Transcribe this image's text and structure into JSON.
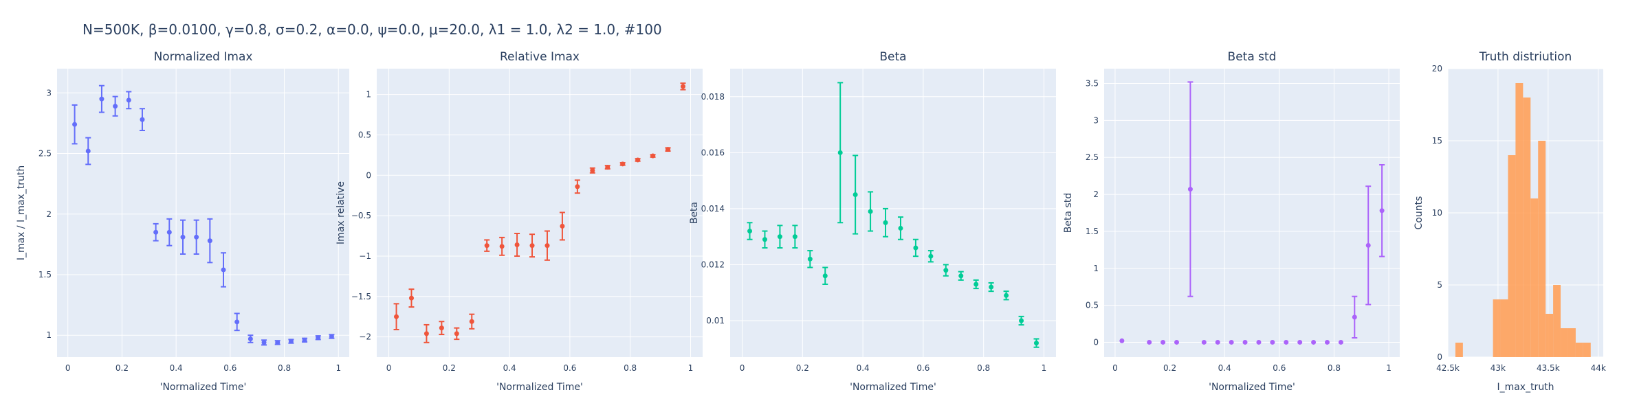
{
  "figure": {
    "title": "N=500K, β=0.0100, γ=0.8, σ=0.2,  α=0.0, ψ=0.0, μ=20.0, λ1 = 1.0, λ2 = 1.0, #100"
  },
  "colors": {
    "plot_bg": "#e5ecf6",
    "grid": "#ffffff",
    "text": "#2a3f5f",
    "imax": "#636efa",
    "relative": "#ef553b",
    "beta": "#00cc96",
    "beta_std": "#ab63fa",
    "hist": "#ffa15a"
  },
  "chart_data": [
    {
      "type": "scatter",
      "title": "Normalized Imax",
      "xlabel": "'Normalized Time'",
      "ylabel": "I_max / I_max_truth",
      "xlim": [
        -0.04,
        1.04
      ],
      "ylim": [
        0.82,
        3.2
      ],
      "xticks": [
        0,
        0.2,
        0.4,
        0.6,
        0.8,
        1
      ],
      "xticklabels": [
        "0",
        "0.2",
        "0.4",
        "0.6",
        "0.8",
        "1"
      ],
      "yticks": [
        1,
        1.5,
        2,
        2.5,
        3
      ],
      "yticklabels": [
        "1",
        "1.5",
        "2",
        "2.5",
        "3"
      ],
      "color_key": "imax",
      "x": [
        0.025,
        0.075,
        0.125,
        0.175,
        0.225,
        0.275,
        0.325,
        0.375,
        0.425,
        0.475,
        0.525,
        0.575,
        0.625,
        0.675,
        0.725,
        0.775,
        0.825,
        0.875,
        0.925,
        0.975
      ],
      "y": [
        2.74,
        2.52,
        2.95,
        2.89,
        2.94,
        2.78,
        1.85,
        1.85,
        1.81,
        1.81,
        1.78,
        1.54,
        1.11,
        0.97,
        0.94,
        0.94,
        0.95,
        0.96,
        0.98,
        0.99
      ],
      "err": [
        0.16,
        0.11,
        0.11,
        0.08,
        0.07,
        0.09,
        0.07,
        0.11,
        0.14,
        0.14,
        0.18,
        0.14,
        0.07,
        0.03,
        0.02,
        0.015,
        0.015,
        0.015,
        0.015,
        0.015
      ]
    },
    {
      "type": "scatter",
      "title": "Relative Imax",
      "xlabel": "'Normalized Time'",
      "ylabel": "Imax relative",
      "xlim": [
        -0.04,
        1.04
      ],
      "ylim": [
        -2.25,
        1.32
      ],
      "xticks": [
        0,
        0.2,
        0.4,
        0.6,
        0.8,
        1
      ],
      "xticklabels": [
        "0",
        "0.2",
        "0.4",
        "0.6",
        "0.8",
        "1"
      ],
      "yticks": [
        -2,
        -1.5,
        -1,
        -0.5,
        0,
        0.5,
        1
      ],
      "yticklabels": [
        "−2",
        "−1.5",
        "−1",
        "−0.5",
        "0",
        "0.5",
        "1"
      ],
      "color_key": "relative",
      "x": [
        0.025,
        0.075,
        0.125,
        0.175,
        0.225,
        0.275,
        0.325,
        0.375,
        0.425,
        0.475,
        0.525,
        0.575,
        0.625,
        0.675,
        0.725,
        0.775,
        0.825,
        0.875,
        0.925,
        0.975
      ],
      "y": [
        -1.75,
        -1.52,
        -1.96,
        -1.89,
        -1.96,
        -1.81,
        -0.87,
        -0.88,
        -0.86,
        -0.87,
        -0.87,
        -0.63,
        -0.14,
        0.06,
        0.1,
        0.14,
        0.19,
        0.24,
        0.32,
        1.1
      ],
      "err": [
        0.16,
        0.11,
        0.11,
        0.08,
        0.07,
        0.09,
        0.07,
        0.11,
        0.14,
        0.14,
        0.18,
        0.17,
        0.08,
        0.03,
        0.02,
        0.015,
        0.015,
        0.015,
        0.02,
        0.04
      ]
    },
    {
      "type": "scatter",
      "title": "Beta",
      "xlabel": "'Normalized Time'",
      "ylabel": "Beta",
      "xlim": [
        -0.04,
        1.04
      ],
      "ylim": [
        0.0087,
        0.019
      ],
      "xticks": [
        0,
        0.2,
        0.4,
        0.6,
        0.8,
        1
      ],
      "xticklabels": [
        "0",
        "0.2",
        "0.4",
        "0.6",
        "0.8",
        "1"
      ],
      "yticks": [
        0.01,
        0.012,
        0.014,
        0.016,
        0.018
      ],
      "yticklabels": [
        "0.01",
        "0.012",
        "0.014",
        "0.016",
        "0.018"
      ],
      "color_key": "beta",
      "x": [
        0.025,
        0.075,
        0.125,
        0.175,
        0.225,
        0.275,
        0.325,
        0.375,
        0.425,
        0.475,
        0.525,
        0.575,
        0.625,
        0.675,
        0.725,
        0.775,
        0.825,
        0.875,
        0.925,
        0.975
      ],
      "y": [
        0.0132,
        0.0129,
        0.013,
        0.013,
        0.0122,
        0.0116,
        0.016,
        0.0145,
        0.0139,
        0.0135,
        0.0133,
        0.0126,
        0.0123,
        0.0118,
        0.0116,
        0.0113,
        0.0112,
        0.0109,
        0.01,
        0.0092
      ],
      "err": [
        0.0003,
        0.0003,
        0.0004,
        0.0004,
        0.0003,
        0.0003,
        0.0025,
        0.0014,
        0.0007,
        0.0005,
        0.0004,
        0.0003,
        0.0002,
        0.0002,
        0.00015,
        0.00015,
        0.00015,
        0.00015,
        0.00015,
        0.00015
      ]
    },
    {
      "type": "scatter",
      "title": "Beta std",
      "xlabel": "'Normalized Time'",
      "ylabel": "Beta std",
      "xlim": [
        -0.04,
        1.04
      ],
      "ylim": [
        -0.2,
        3.7
      ],
      "xticks": [
        0,
        0.2,
        0.4,
        0.6,
        0.8,
        1
      ],
      "xticklabels": [
        "0",
        "0.2",
        "0.4",
        "0.6",
        "0.8",
        "1"
      ],
      "yticks": [
        0,
        0.5,
        1,
        1.5,
        2,
        2.5,
        3,
        3.5
      ],
      "yticklabels": [
        "0",
        "0.5",
        "1",
        "1.5",
        "2",
        "2.5",
        "3",
        "3.5"
      ],
      "color_key": "beta_std",
      "x": [
        0.025,
        0.125,
        0.175,
        0.225,
        0.275,
        0.325,
        0.375,
        0.425,
        0.475,
        0.525,
        0.575,
        0.625,
        0.675,
        0.725,
        0.775,
        0.825,
        0.875,
        0.925,
        0.975
      ],
      "y": [
        0.02,
        0.0,
        0.0,
        0.0,
        2.07,
        0.0,
        0.0,
        0.0,
        0.0,
        0.0,
        0.0,
        0.0,
        0.0,
        0.0,
        0.0,
        0.0,
        0.34,
        1.31,
        1.78
      ],
      "err": [
        0,
        0,
        0,
        0,
        1.45,
        0,
        0,
        0,
        0,
        0,
        0,
        0,
        0,
        0,
        0,
        0,
        0.28,
        0.8,
        0.62
      ]
    },
    {
      "type": "bar",
      "title": "Truth distriution",
      "xlabel": "I_max_truth",
      "ylabel": "Counts",
      "xlim": [
        42500,
        44050
      ],
      "ylim": [
        0,
        20
      ],
      "xticks": [
        42500,
        43000,
        43500,
        44000
      ],
      "xticklabels": [
        "42.5k",
        "43k",
        "43.5k",
        "44k"
      ],
      "yticks": [
        0,
        5,
        10,
        15,
        20
      ],
      "yticklabels": [
        "0",
        "5",
        "10",
        "15",
        "20"
      ],
      "color_key": "hist",
      "bin_start": 42500,
      "bin_width": 75,
      "counts": [
        0,
        1,
        0,
        0,
        0,
        0,
        4,
        4,
        14,
        19,
        18,
        11,
        15,
        3,
        5,
        2,
        2,
        1,
        1
      ]
    }
  ]
}
